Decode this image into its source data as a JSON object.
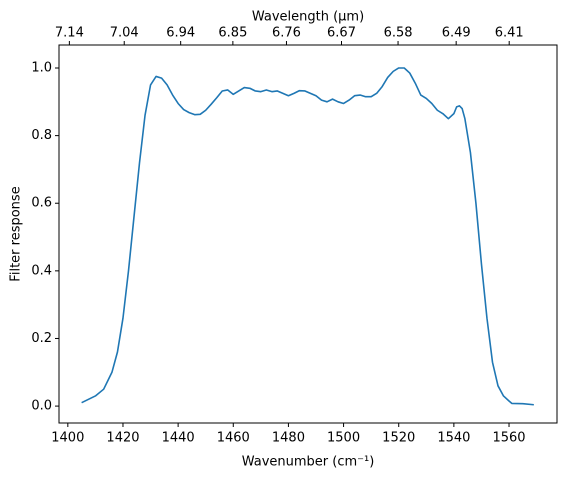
{
  "chart_data": {
    "type": "line",
    "x_label": "Wavenumber (cm⁻¹)",
    "y_label": "Filter response",
    "x2_label": "Wavelength (μm)",
    "x": [
      1405,
      1410,
      1413,
      1416,
      1418,
      1420,
      1422,
      1424,
      1426,
      1428,
      1430,
      1432,
      1434,
      1436,
      1438,
      1440,
      1442,
      1444,
      1446,
      1448,
      1450,
      1452,
      1454,
      1456,
      1458,
      1460,
      1462,
      1464,
      1466,
      1468,
      1470,
      1472,
      1474,
      1476,
      1478,
      1480,
      1482,
      1484,
      1486,
      1488,
      1490,
      1492,
      1494,
      1496,
      1498,
      1500,
      1502,
      1504,
      1506,
      1508,
      1510,
      1512,
      1514,
      1516,
      1518,
      1520,
      1522,
      1524,
      1526,
      1528,
      1530,
      1532,
      1534,
      1536,
      1538,
      1540,
      1541,
      1542,
      1543,
      1544,
      1546,
      1548,
      1550,
      1552,
      1554,
      1556,
      1558,
      1560,
      1561,
      1565,
      1569
    ],
    "series": [
      {
        "color": "#1f77b4",
        "values": [
          0.01,
          0.03,
          0.05,
          0.1,
          0.16,
          0.26,
          0.4,
          0.56,
          0.72,
          0.86,
          0.95,
          0.975,
          0.97,
          0.95,
          0.92,
          0.895,
          0.877,
          0.868,
          0.862,
          0.863,
          0.875,
          0.893,
          0.912,
          0.932,
          0.935,
          0.922,
          0.932,
          0.942,
          0.94,
          0.932,
          0.93,
          0.935,
          0.93,
          0.932,
          0.925,
          0.918,
          0.925,
          0.933,
          0.932,
          0.925,
          0.918,
          0.905,
          0.9,
          0.908,
          0.9,
          0.895,
          0.905,
          0.918,
          0.92,
          0.915,
          0.915,
          0.925,
          0.945,
          0.972,
          0.99,
          1.0,
          1.0,
          0.985,
          0.955,
          0.92,
          0.91,
          0.895,
          0.875,
          0.865,
          0.85,
          0.865,
          0.885,
          0.888,
          0.88,
          0.85,
          0.75,
          0.6,
          0.42,
          0.26,
          0.13,
          0.06,
          0.03,
          0.015,
          0.008,
          0.007,
          0.004
        ]
      }
    ],
    "xlim": [
      1396.8,
      1577.4
    ],
    "ylim": [
      -0.05,
      1.068
    ],
    "xticks": [
      1400,
      1420,
      1440,
      1460,
      1480,
      1500,
      1520,
      1540,
      1560
    ],
    "yticks": [
      {
        "value": 0,
        "label": "0.0"
      },
      {
        "value": 0.2,
        "label": "0.2"
      },
      {
        "value": 0.4,
        "label": "0.4"
      },
      {
        "value": 0.6,
        "label": "0.6"
      },
      {
        "value": 0.8,
        "label": "0.8"
      },
      {
        "value": 1,
        "label": "1.0"
      }
    ],
    "x2ticks": [
      7.14,
      7.04,
      6.94,
      6.85,
      6.76,
      6.67,
      6.58,
      6.49,
      6.41
    ],
    "x2_scale": "reciprocal"
  }
}
